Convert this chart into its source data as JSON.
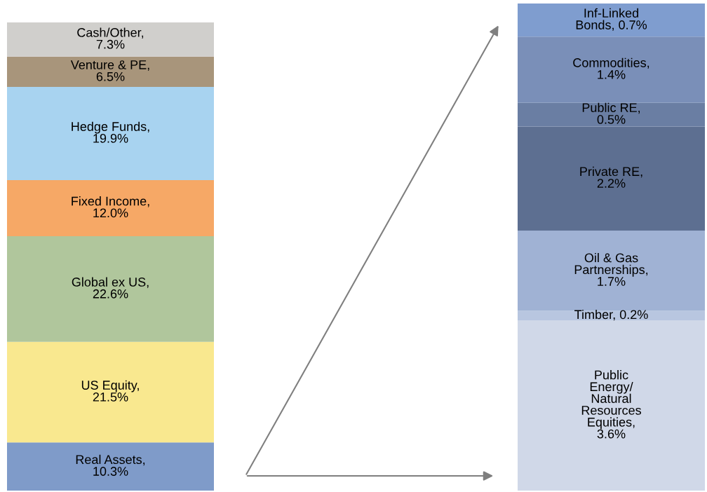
{
  "chart_data": [
    {
      "type": "bar",
      "stacked": true,
      "tick_labels": false,
      "categories": [
        null
      ],
      "series": [
        {
          "color": "#7f9bc9",
          "values": [
            10.3
          ],
          "value_labels": [
            "Real Assets,\n10.3%"
          ]
        },
        {
          "color": "#f9e88f",
          "values": [
            21.5
          ],
          "value_labels": [
            "US Equity,\n21.5%"
          ]
        },
        {
          "color": "#b0c69c",
          "values": [
            22.6
          ],
          "value_labels": [
            "Global ex US,\n22.6%"
          ]
        },
        {
          "color": "#f6a866",
          "values": [
            12.0
          ],
          "value_labels": [
            "Fixed Income,\n12.0%"
          ]
        },
        {
          "color": "#a8d3f0",
          "values": [
            19.9
          ],
          "value_labels": [
            "Hedge Funds,\n19.9%"
          ]
        },
        {
          "color": "#a8957b",
          "values": [
            6.5
          ],
          "value_labels": [
            "Venture & PE,\n6.5%"
          ]
        },
        {
          "color": "#d0cfcc",
          "values": [
            7.3
          ],
          "value_labels": [
            "Cash/Other,\n7.3%"
          ]
        }
      ]
    },
    {
      "type": "bar",
      "stacked": true,
      "tick_labels": false,
      "categories": [
        null
      ],
      "series": [
        {
          "color": "#d0d8e8",
          "values": [
            3.6
          ],
          "value_labels": [
            "Public\nEnergy/\nNatural\nResources\nEquities,\n3.6%"
          ]
        },
        {
          "color": "#b8c6e0",
          "values": [
            0.2
          ],
          "value_labels": [
            "Timber, 0.2%"
          ]
        },
        {
          "color": "#a0b2d4",
          "values": [
            1.7
          ],
          "value_labels": [
            "Oil & Gas\nPartnerships,\n1.7%"
          ]
        },
        {
          "color": "#5d6f91",
          "values": [
            2.2
          ],
          "value_labels": [
            "Private RE,\n2.2%"
          ]
        },
        {
          "color": "#6a7ea3",
          "values": [
            0.5
          ],
          "value_labels": [
            "Public RE,\n0.5%"
          ]
        },
        {
          "color": "#7a8fb8",
          "values": [
            1.4
          ],
          "value_labels": [
            "Commodities,\n1.4%"
          ]
        },
        {
          "color": "#7f9dcf",
          "values": [
            0.7
          ],
          "value_labels": [
            "Inf-Linked\nBonds, 0.7%"
          ]
        }
      ]
    }
  ]
}
